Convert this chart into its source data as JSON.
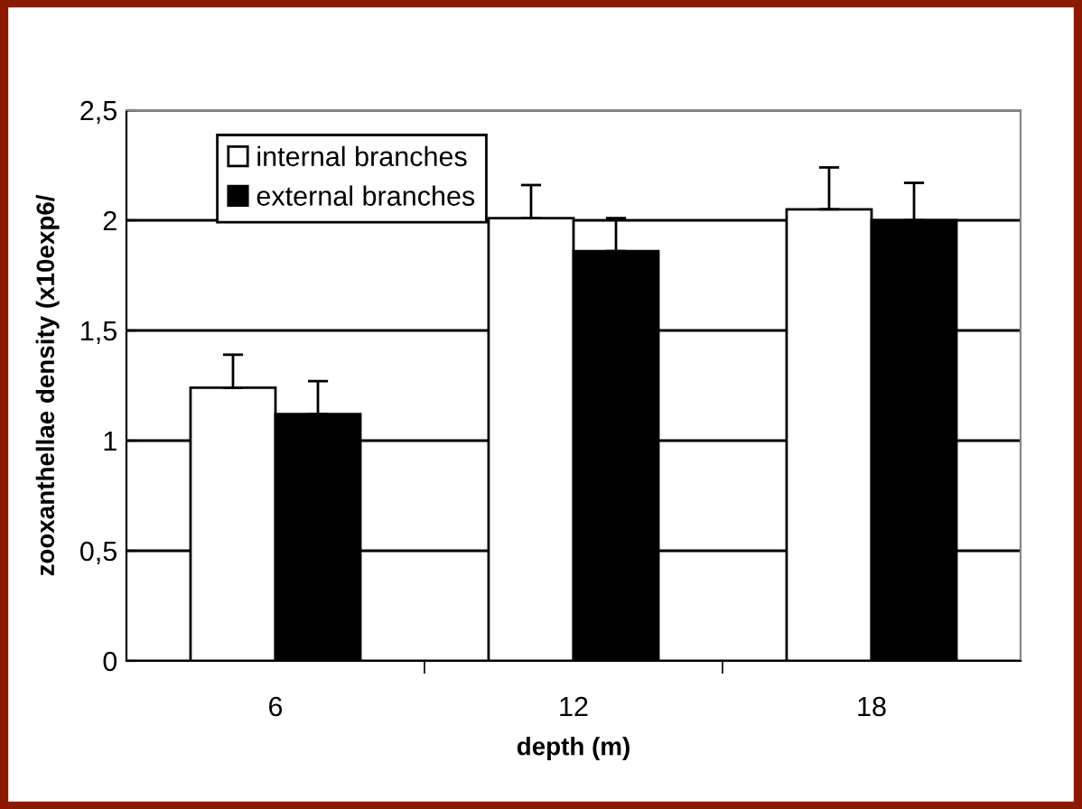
{
  "chart_data": {
    "type": "bar",
    "xlabel": "depth (m)",
    "ylabel": "zooxanthellae density (x10exp6/",
    "categories": [
      "6",
      "12",
      "18"
    ],
    "series": [
      {
        "name": "internal branches",
        "color": "#ffffff",
        "values": [
          1.24,
          2.01,
          2.05
        ],
        "errors": [
          [
            1.24,
            1.39
          ],
          [
            2.01,
            2.16
          ],
          [
            2.05,
            2.24
          ]
        ]
      },
      {
        "name": "external branches",
        "color": "#000000",
        "values": [
          1.12,
          1.86,
          2.0
        ],
        "errors": [
          [
            1.12,
            1.27
          ],
          [
            1.86,
            2.01
          ],
          [
            2.0,
            2.17
          ]
        ]
      }
    ],
    "ylim": [
      0,
      2.5
    ],
    "yticks": [
      0,
      {
        "value": 0.5,
        "label": "0,5"
      },
      1,
      {
        "value": 1.5,
        "label": "1,5"
      },
      2,
      {
        "value": 2.5,
        "label": "2,5"
      }
    ],
    "grid": "y",
    "legend": "top left"
  }
}
